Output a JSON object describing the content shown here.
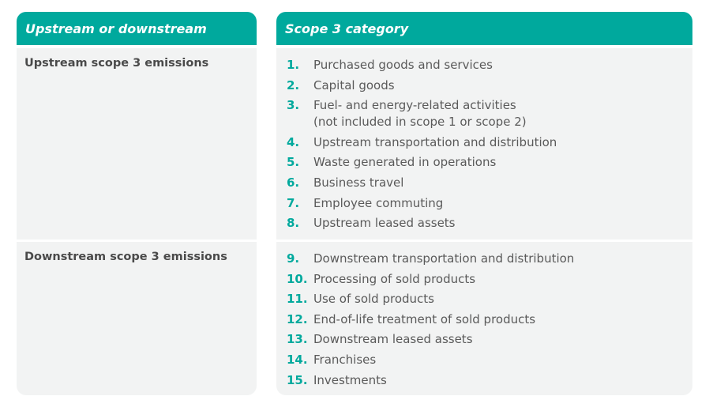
{
  "headers": {
    "col1": "Upstream or downstream",
    "col2": "Scope 3 category"
  },
  "colors": {
    "accent": "#00a99d",
    "cell_bg": "#f2f3f3",
    "text": "#5a5a5a"
  },
  "rows": [
    {
      "label": "Upstream scope 3 emissions",
      "items": [
        {
          "num": "1.",
          "text": "Purchased goods and services"
        },
        {
          "num": "2.",
          "text": "Capital goods"
        },
        {
          "num": "3.",
          "text": "Fuel- and energy-related activities\n(not included in scope 1 or scope 2)"
        },
        {
          "num": "4.",
          "text": "Upstream transportation and distribution"
        },
        {
          "num": "5.",
          "text": "Waste generated in operations"
        },
        {
          "num": "6.",
          "text": "Business travel"
        },
        {
          "num": "7.",
          "text": "Employee commuting"
        },
        {
          "num": "8.",
          "text": "Upstream leased assets"
        }
      ]
    },
    {
      "label": "Downstream scope 3 emissions",
      "items": [
        {
          "num": "9.",
          "text": "Downstream transportation and distribution"
        },
        {
          "num": "10.",
          "text": "Processing of sold products"
        },
        {
          "num": "11.",
          "text": "Use of sold products"
        },
        {
          "num": "12.",
          "text": "End-of-life treatment of sold products"
        },
        {
          "num": "13.",
          "text": "Downstream leased assets"
        },
        {
          "num": "14.",
          "text": "Franchises"
        },
        {
          "num": "15.",
          "text": "Investments"
        }
      ]
    }
  ]
}
